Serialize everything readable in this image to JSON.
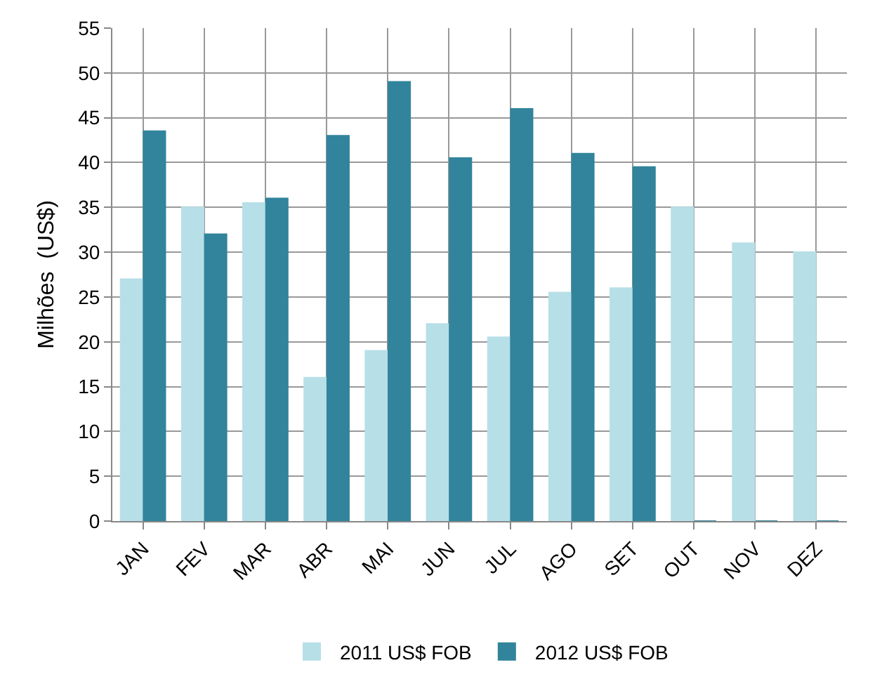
{
  "chart_data": {
    "type": "bar",
    "ylabel": "Milhões  (US$)",
    "categories": [
      "JAN",
      "FEV",
      "MAR",
      "ABR",
      "MAI",
      "JUN",
      "JUL",
      "AGO",
      "SET",
      "OUT",
      "NOV",
      "DEZ"
    ],
    "series": [
      {
        "name": "2011 US$ FOB",
        "color": "#b7dfe8",
        "values": [
          27,
          35,
          35.5,
          16,
          19,
          22,
          20.5,
          25.5,
          26,
          35,
          31,
          30
        ]
      },
      {
        "name": "2012 US$ FOB",
        "color": "#31849b",
        "values": [
          43.5,
          32,
          36,
          43,
          49,
          40.5,
          46,
          41,
          39.5,
          0,
          0,
          0
        ]
      }
    ],
    "ylim": [
      0,
      55
    ],
    "yticks": [
      0,
      5,
      10,
      15,
      20,
      25,
      30,
      35,
      40,
      45,
      50,
      55
    ],
    "grid": true,
    "legend": "bottom"
  }
}
